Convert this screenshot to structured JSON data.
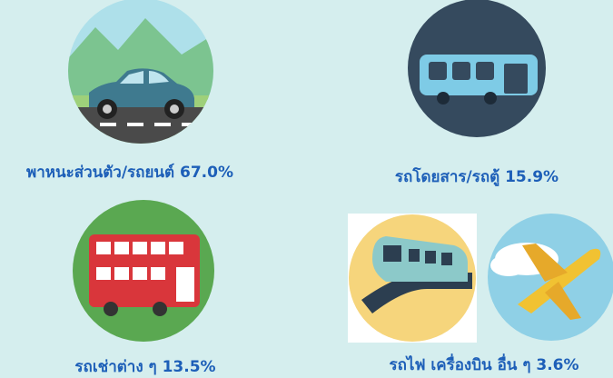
{
  "items": [
    {
      "label": "พาหนะส่วนตัว/รถยนต์ 67.0%"
    },
    {
      "label": "รถโดยสาร/รถตู้ 15.9%"
    },
    {
      "label": "รถเช่าต่าง ๆ 13.5%"
    },
    {
      "label": "รถไฟ เครื่องบิน อื่น ๆ 3.6%"
    }
  ]
}
